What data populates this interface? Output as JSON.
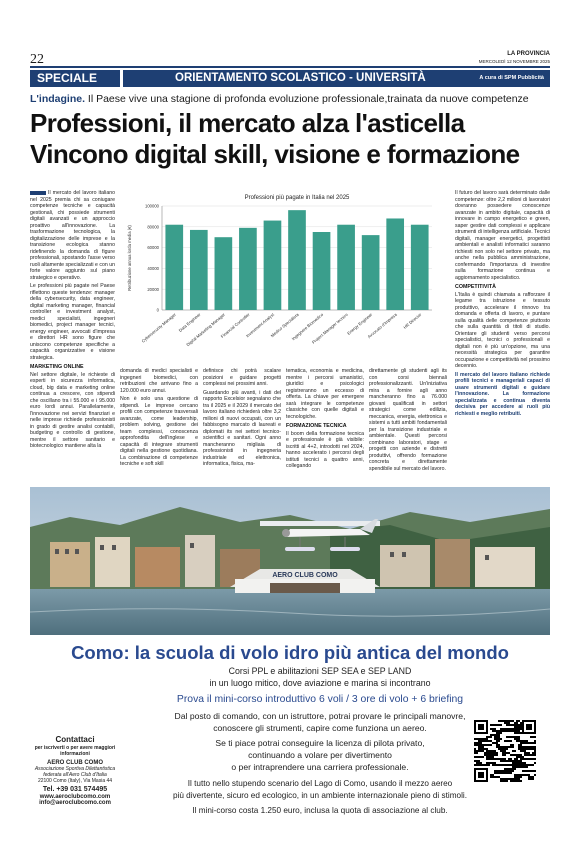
{
  "header": {
    "page_number": "22",
    "newspaper": "LA PROVINCIA",
    "date": "MERCOLEDÌ 12 NOVEMBRE 2025",
    "section": "SPECIALE",
    "topic": "ORIENTAMENTO SCOLASTICO - UNIVERSITÀ",
    "credit": "A cura di SPM Pubblicità"
  },
  "article": {
    "kicker_label": "L'indagine.",
    "kicker_text": "Il Paese vive una stagione di profonda evoluzione professionale,trainata da nuove competenze",
    "headline_1": "Professioni, il mercato alza l'asticella",
    "headline_2": "Vincono digital skill, visione e formazione",
    "col1_p1": "Il mercato del lavoro italiano nel 2025 premia chi sa coniugare competenze tecniche e capacità gestionali, chi possiede strumenti digitali avanzati e un approccio proattivo all'innovazione. La trasformazione tecnologica, la digitalizzazione delle imprese e la transizione ecologica stanno ridefinendo la domanda di figure professionali, spostando l'asse verso ruoli altamente specializzati e con un forte valore aggiunto sul piano strategico e operativo.",
    "col1_p2": "Le professioni più pagate nel Paese riflettono queste tendenze: manager della cybersecurity, data engineer, digital marketing manager, financial controller e investment analyst, medici specialisti, ingegneri biomedici, project manager tecnici, energy engineer, avvocati d'impresa e direttori HR sono figure che uniscono competenze specifiche a capacità organizzative e visione strategica.",
    "col1_h": "MARKETING ONLINE",
    "col1_p3": "Nel settore digitale, le richieste di esperti in sicurezza informatica, cloud, big data e marketing online continua a crescere, con stipendi che oscillano tra i 55.000 e i 95.000 euro lordi annui. Parallelamente, l'innovazione nei servizi finanziari e nelle imprese richiede professionisti in grado di gestire analisi contabili, budgeting e controllo di gestione, mentre il settore sanitario e biotecnologico mantiene alta la",
    "col2_p1": "domanda di medici specialisti e ingegneri biomedici, con retribuzioni che arrivano fino a 120.000 euro annui.",
    "col2_p2": "Non è solo una questione di stipendi. Le imprese cercano profili con competenze trasversali avanzate, come leadership, problem solving, gestione dei team complessi, conoscenza approfondita dell'inglese e capacità di integrare strumenti digitali nella gestione quotidiana. La combinazione di competenze tecniche e soft skill",
    "col3_p1": "definisce chi potrà scalare posizioni e guidare progetti complessi nei prossimi anni.",
    "col3_p2": "Guardando più avanti, i dati del rapporto Excelsior segnalano che tra il 2025 e il 2029 il mercato del lavoro italiano richiederà oltre 3,2 milioni di nuovi occupati, con un fabbisogno marcato di laureati e diplomati its nei settori tecnico-scientifici e sanitari. Ogni anno mancheranno migliaia di professionisti in ingegneria industriale ed elettronica, informatica, fisica, ma-",
    "col4_p1": "tematica, economia e medicina, mentre i percorsi umanistici, giuridici e psicologici registreranno un eccesso di offerta. La chiave per emergere sarà integrare le competenze classiche con quelle digitali e tecnologiche.",
    "col4_h": "FORMAZIONE TECNICA",
    "col4_p2": "Il boom della formazione tecnica e professionale è già visibile: iscritti al 4+2, introdotti nel 2024, hanno accelerato i percorsi degli istituti tecnici a quattro anni, collegando",
    "col5_p1": "direttamente gli studenti agli its con corsi biennali professionalizzanti. Un'iniziativa mira a fornire agli anno mancheranno fino a 76.000 giovani qualificati in settori strategici come edilizia, meccanica, energia, elettronica e sistemi a tutti ambiti fondamentali per la transizione industriale e ambientale. Questi percorsi combinano laboratori, stage e progetti con aziende e distretti produttivi, offrendo formazione concreta e direttamente spendibile sul mercato del lavoro.",
    "col6_p1": "Il futuro del lavoro sarà determinato dalle competenze: oltre 2,2 milioni di lavoratori dovranno possedere conoscenze avanzate in ambito digitale, capacità di innovare in campo energetico e green, saper gestire dati complessi e applicare strumenti di intelligenza artificiale. Tecnici digitali, manager energetici, progettisti ambientali e analisti informatici saranno richiesti non solo nel settore privato, ma anche nella pubblica amministrazione, confermando l'importanza di investire sulla formazione continua e aggiornamento specialistico.",
    "col6_h": "COMPETITIVITÀ",
    "col6_p2": "L'Italia è quindi chiamata a rafforzare il legame tra istruzione e tessuto produttivo, accelerare il rinnovo tra domanda e offerta di lavoro, e puntare sulla qualità delle competenze piuttosto che sulla quantità di titoli di studio. Orientare gli studenti verso percorsi specialistici, tecnici o professionali e digitali non è più un'opzione, ma una necessità strategica per garantire occupazione e competitività nel prossimo decennio.",
    "col6_hl": "Il mercato del lavoro italiano richiede profili tecnici e manageriali capaci di usare strumenti digitali e guidare l'innovazione. La formazione specializzata e continua diventa decisiva per accedere ai ruoli più richiesti e meglio retribuiti."
  },
  "chart_data": {
    "type": "bar",
    "title": "Professioni più pagate in Italia nel 2025",
    "ylabel": "Retribuzione annua lorda media (€)",
    "xlabel": "",
    "ylim": [
      0,
      100000
    ],
    "yticks": [
      "0",
      "20000",
      "40000",
      "60000",
      "80000",
      "100000"
    ],
    "categories": [
      "Cybersecurity Manager",
      "Data Engineer",
      "Digital Marketing Manager",
      "Financial Controller",
      "Investment Analyst",
      "Medico Specialista",
      "Ingegnere Biomedico",
      "Project Manager tecnico",
      "Energy Engineer",
      "Avvocato d'Impresa",
      "HR Director"
    ],
    "values": [
      82000,
      77000,
      70000,
      79000,
      86000,
      96000,
      75000,
      82000,
      72000,
      88000,
      82000
    ],
    "color": "#3a9e8c",
    "grid": true
  },
  "ad": {
    "photo_sign": "AERO CLUB COMO",
    "title": "Como: la scuola di volo idro più antica del mondo",
    "line1": "Corsi PPL e abilitazioni SEP SEA e SEP LAND",
    "line2": "in un luogo mitico, dove aviazione e marina si incontrano",
    "line3": "Prova il mini-corso introduttivo 6 voli / 3 ore di volo + 6 briefing",
    "line4": "Dal posto di comando, con un istruttore, potrai provare le principali manovre,",
    "line5": "conoscere gli strumenti, capire come funziona un aereo.",
    "line6": "Se ti piace potrai conseguire la licenza di pilota privato,",
    "line7": "continuando a volare per divertimento",
    "line8": "o per intraprendere una carriera professionale.",
    "line9": "Il tutto nello stupendo scenario del Lago di Como, usando il mezzo aereo",
    "line10": "più divertente, sicuro ed ecologico, in un ambiente internazionale pieno di stimoli.",
    "line11": "Il mini-corso costa 1.250 euro, inclusa la quota di associazione al club.",
    "contact_title": "Contattaci",
    "contact_sub": "per iscriverti o per avere maggiori informazioni",
    "club": "AERO CLUB COMO",
    "assoc": "Associazione Sportiva Dilettantistica federata all'Aero Club d'Italia",
    "address": "22100 Como (Italy), Via Masia 44",
    "phone": "Tel. +39 031 574495",
    "web": "www.aeroclubcomo.com",
    "email": "info@aeroclubcomo.com"
  }
}
